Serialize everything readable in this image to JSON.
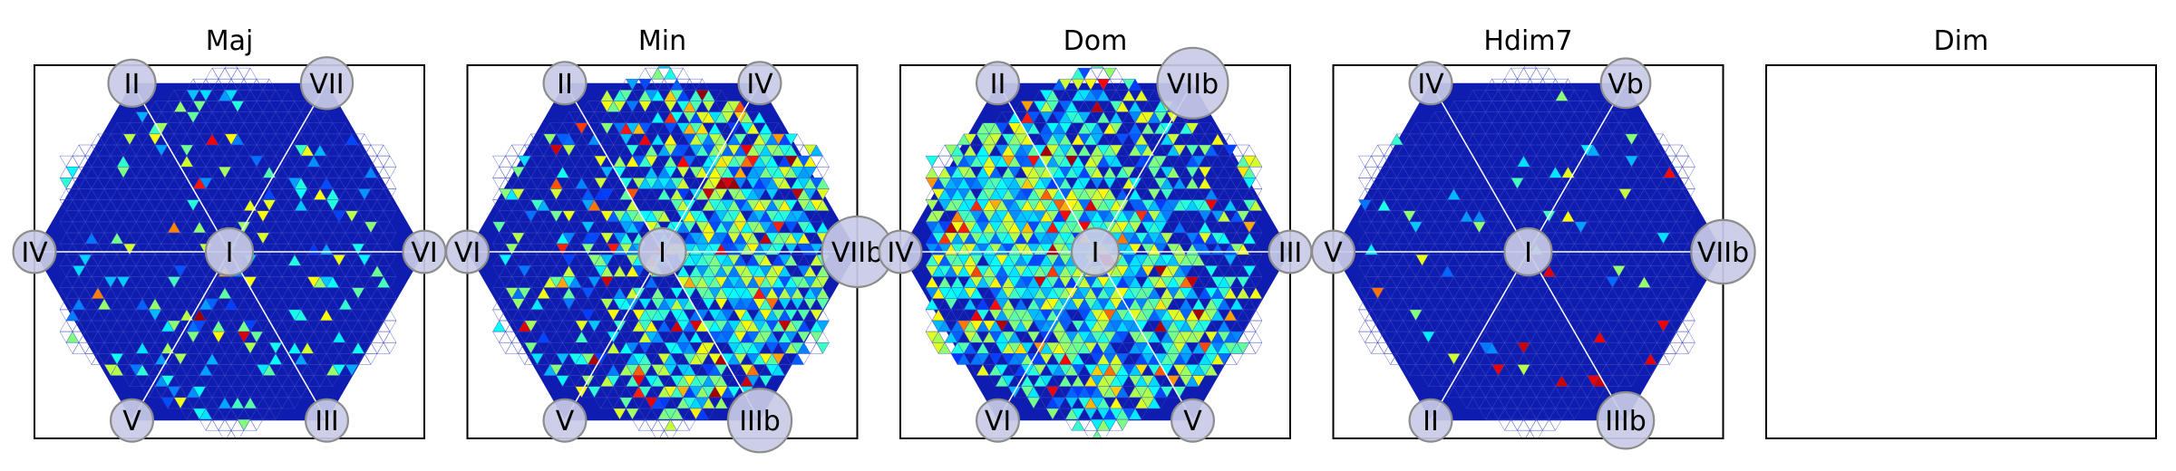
{
  "colors": {
    "background_hex": "#0f1cb0",
    "grid_line": "#3a46c4",
    "spoke": "#ffffff",
    "node_fill": "#c9cbe6",
    "node_stroke": "#8c8c8c",
    "colormap": "jet"
  },
  "chart_data": [
    {
      "type": "heatmap",
      "title": "Maj",
      "grid": "triangular",
      "center_label": "I",
      "vertex_labels": [
        "II",
        "VII",
        "VI",
        "III",
        "V",
        "IV"
      ],
      "vertex_radii": [
        1,
        1.1,
        0.9,
        0.9,
        0.9,
        0.9
      ],
      "density": 0.06,
      "seed": 11,
      "hotspots": [
        {
          "label": "V",
          "spread": 0.35,
          "weight": 1.0
        },
        {
          "label": "VI",
          "spread": 0.4,
          "weight": 0.9
        },
        {
          "label": "II",
          "spread": 0.45,
          "weight": 0.6
        }
      ],
      "value_scale": [
        0,
        1
      ]
    },
    {
      "type": "heatmap",
      "title": "Min",
      "grid": "triangular",
      "center_label": "I",
      "vertex_labels": [
        "II",
        "IV",
        "VIIb",
        "IIIb",
        "V",
        "VI"
      ],
      "vertex_radii": [
        0.9,
        0.9,
        1.5,
        1.35,
        0.9,
        0.9
      ],
      "density": 0.22,
      "seed": 23,
      "hotspots": [
        {
          "label": "IV",
          "spread": 0.45,
          "weight": 1.0
        },
        {
          "label": "IIIb",
          "spread": 0.45,
          "weight": 0.9
        },
        {
          "label": "VIIb",
          "spread": 0.5,
          "weight": 0.8
        }
      ],
      "value_scale": [
        0,
        1
      ]
    },
    {
      "type": "heatmap",
      "title": "Dom",
      "grid": "triangular",
      "center_label": "I",
      "vertex_labels": [
        "II",
        "VIIb",
        "III",
        "V",
        "VI",
        "IV"
      ],
      "vertex_radii": [
        0.9,
        1.5,
        0.9,
        0.9,
        0.9,
        0.9
      ],
      "density": 0.3,
      "seed": 37,
      "hotspots": [
        {
          "label": "V",
          "spread": 0.45,
          "weight": 1.0
        },
        {
          "label": "IV",
          "spread": 0.5,
          "weight": 0.9
        },
        {
          "label": "II",
          "spread": 0.5,
          "weight": 0.7
        }
      ],
      "value_scale": [
        0,
        1
      ]
    },
    {
      "type": "heatmap",
      "title": "Hdim7",
      "grid": "triangular",
      "center_label": "I",
      "vertex_labels": [
        "IV",
        "Vb",
        "VIIb",
        "IIIb",
        "II",
        "V"
      ],
      "vertex_radii": [
        0.9,
        1.05,
        1.35,
        1.2,
        0.9,
        0.9
      ],
      "density": 0.03,
      "seed": 53,
      "hotspots": [
        {
          "label": "IIIb",
          "spread": 0.3,
          "weight": 1.0,
          "hot": true
        },
        {
          "label": "V",
          "spread": 0.35,
          "weight": 0.7
        },
        {
          "label": "Vb",
          "spread": 0.35,
          "weight": 0.5
        }
      ],
      "value_scale": [
        0,
        1
      ]
    },
    {
      "type": "heatmap",
      "title": "Dim",
      "grid": "none",
      "empty": true,
      "vertex_labels": []
    }
  ]
}
